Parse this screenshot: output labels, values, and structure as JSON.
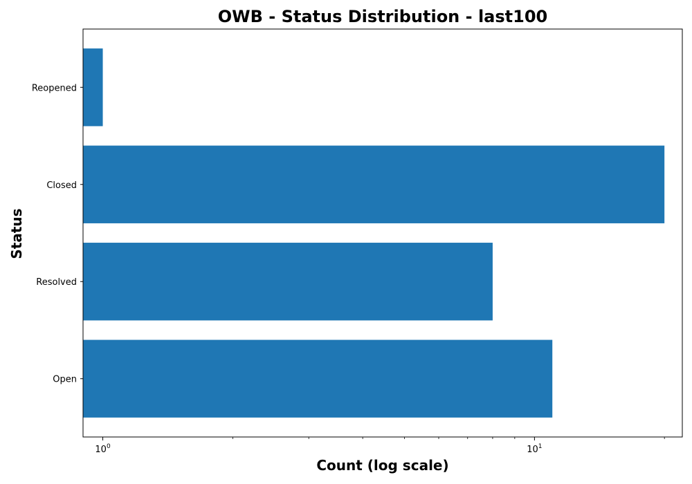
{
  "chart_data": {
    "type": "bar",
    "orientation": "horizontal",
    "title": "OWB - Status Distribution - last100",
    "xlabel": "Count (log scale)",
    "ylabel": "Status",
    "xscale": "log",
    "xlim": [
      0.9,
      22
    ],
    "categories": [
      "Open",
      "Resolved",
      "Closed",
      "Reopened"
    ],
    "values": [
      11,
      8,
      20,
      1
    ],
    "x_tick_labels": [
      "10^0",
      "10^1"
    ],
    "x_tick_values": [
      1,
      10
    ],
    "bar_color": "#1f77b4",
    "grid": false,
    "legend": "none"
  }
}
